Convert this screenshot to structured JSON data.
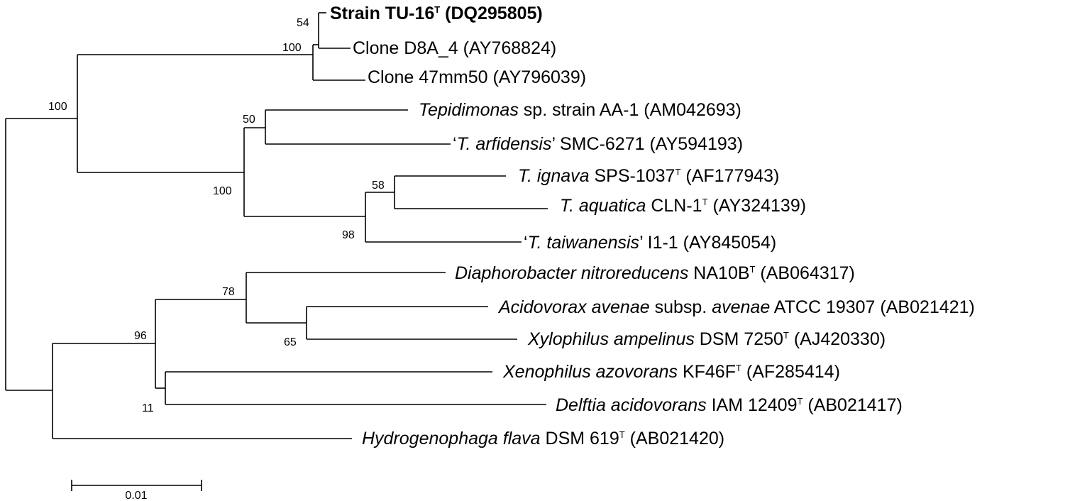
{
  "taxa": [
    {
      "id": "tu16",
      "parts": [
        {
          "text": "Strain TU-16",
          "style": "bold"
        },
        {
          "text": "T",
          "style": "bold-sup"
        },
        {
          "text": " (DQ295805)",
          "style": "bold"
        }
      ]
    },
    {
      "id": "d8a4",
      "parts": [
        {
          "text": "Clone D8A_4 (AY768824)",
          "style": "normal"
        }
      ]
    },
    {
      "id": "c47mm50",
      "parts": [
        {
          "text": "Clone 47mm50 (AY796039)",
          "style": "normal"
        }
      ]
    },
    {
      "id": "tepidimonas",
      "parts": [
        {
          "text": "Tepidimonas",
          "style": "italic"
        },
        {
          "text": " sp. strain AA-1 (AM042693)",
          "style": "normal"
        }
      ]
    },
    {
      "id": "arfidensis",
      "parts": [
        {
          "text": "‘",
          "style": "normal"
        },
        {
          "text": "T. arfidensis",
          "style": "italic"
        },
        {
          "text": "’  SMC-6271 (AY594193)",
          "style": "normal"
        }
      ]
    },
    {
      "id": "ignava",
      "parts": [
        {
          "text": "T. ignava",
          "style": "italic"
        },
        {
          "text": " SPS-1037",
          "style": "normal"
        },
        {
          "text": "T",
          "style": "sup"
        },
        {
          "text": " (AF177943)",
          "style": "normal"
        }
      ]
    },
    {
      "id": "aquatica",
      "parts": [
        {
          "text": "T. aquatica",
          "style": "italic"
        },
        {
          "text": " CLN-1",
          "style": "normal"
        },
        {
          "text": "T",
          "style": "sup"
        },
        {
          "text": " (AY324139)",
          "style": "normal"
        }
      ]
    },
    {
      "id": "taiwanensis",
      "parts": [
        {
          "text": "‘",
          "style": "normal"
        },
        {
          "text": "T. taiwanensis",
          "style": "italic"
        },
        {
          "text": "’  I1-1  (AY845054)",
          "style": "normal"
        }
      ]
    },
    {
      "id": "diaphorobacter",
      "parts": [
        {
          "text": "Diaphorobacter nitroreducens",
          "style": "italic"
        },
        {
          "text": " NA10B",
          "style": "normal"
        },
        {
          "text": "T",
          "style": "sup"
        },
        {
          "text": " (AB064317)",
          "style": "normal"
        }
      ]
    },
    {
      "id": "acidovorax",
      "parts": [
        {
          "text": "Acidovorax avenae",
          "style": "italic"
        },
        {
          "text": " subsp. ",
          "style": "normal"
        },
        {
          "text": "avenae",
          "style": "italic"
        },
        {
          "text": " ATCC 19307  (AB021421)",
          "style": "normal"
        }
      ]
    },
    {
      "id": "xylophilus",
      "parts": [
        {
          "text": "Xylophilus ampelinus",
          "style": "italic"
        },
        {
          "text": " DSM 7250",
          "style": "normal"
        },
        {
          "text": "T",
          "style": "sup"
        },
        {
          "text": " (AJ420330)",
          "style": "normal"
        }
      ]
    },
    {
      "id": "xenophilus",
      "parts": [
        {
          "text": "Xenophilus azovorans",
          "style": "italic"
        },
        {
          "text": " KF46F",
          "style": "normal"
        },
        {
          "text": "T",
          "style": "sup"
        },
        {
          "text": " (AF285414)",
          "style": "normal"
        }
      ]
    },
    {
      "id": "delftia",
      "parts": [
        {
          "text": "Delftia acidovorans",
          "style": "italic"
        },
        {
          "text": " IAM 12409",
          "style": "normal"
        },
        {
          "text": "T",
          "style": "sup"
        },
        {
          "text": " (AB021417)",
          "style": "normal"
        }
      ]
    },
    {
      "id": "hydrogenophaga",
      "parts": [
        {
          "text": "Hydrogenophaga flava",
          "style": "italic"
        },
        {
          "text": " DSM 619",
          "style": "normal"
        },
        {
          "text": "T",
          "style": "sup"
        },
        {
          "text": " (AB021420)",
          "style": "normal"
        }
      ]
    }
  ],
  "bootstrap": [
    "54",
    "100",
    "100",
    "50",
    "100",
    "58",
    "98",
    "78",
    "65",
    "96",
    "11"
  ],
  "scale_bar": {
    "label": "0.01"
  }
}
